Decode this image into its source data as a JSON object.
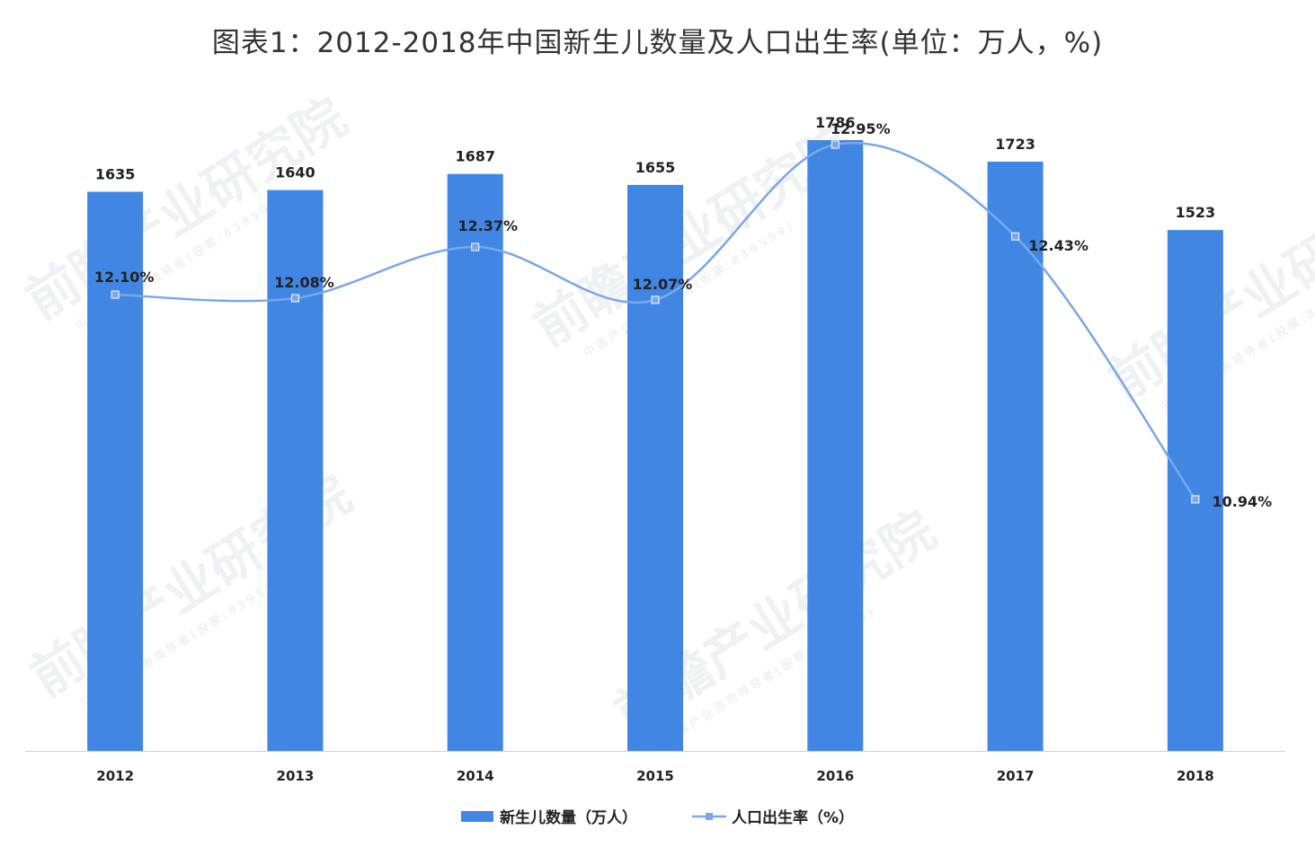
{
  "title": "图表1：2012-2018年中国新生儿数量及人口出生率(单位：万人，%)",
  "watermark": {
    "main": "前瞻产业研究院",
    "sub": "中国产业咨询领导者(股票:839599)"
  },
  "colors": {
    "bar": "#4286e4",
    "line": "#7aa7eb",
    "text": "#222222",
    "axis": "#d0d0d0"
  },
  "chart_data": {
    "type": "bar",
    "title": "图表1：2012-2018年中国新生儿数量及人口出生率(单位：万人，%)",
    "categories": [
      "2012",
      "2013",
      "2014",
      "2015",
      "2016",
      "2017",
      "2018"
    ],
    "series": [
      {
        "name": "新生儿数量（万人）",
        "type": "bar",
        "values": [
          1635,
          1640,
          1687,
          1655,
          1786,
          1723,
          1523
        ],
        "labels": [
          "1635",
          "1640",
          "1687",
          "1655",
          "1786",
          "1723",
          "1523"
        ]
      },
      {
        "name": "人口出生率（%）",
        "type": "line",
        "smooth": true,
        "values": [
          12.1,
          12.08,
          12.37,
          12.07,
          12.95,
          12.43,
          10.94
        ],
        "labels": [
          "12.10%",
          "12.08%",
          "12.37%",
          "12.07%",
          "12.95%",
          "12.43%",
          "10.94%"
        ]
      }
    ],
    "legend": {
      "position": "bottom-center"
    },
    "grid": false
  }
}
